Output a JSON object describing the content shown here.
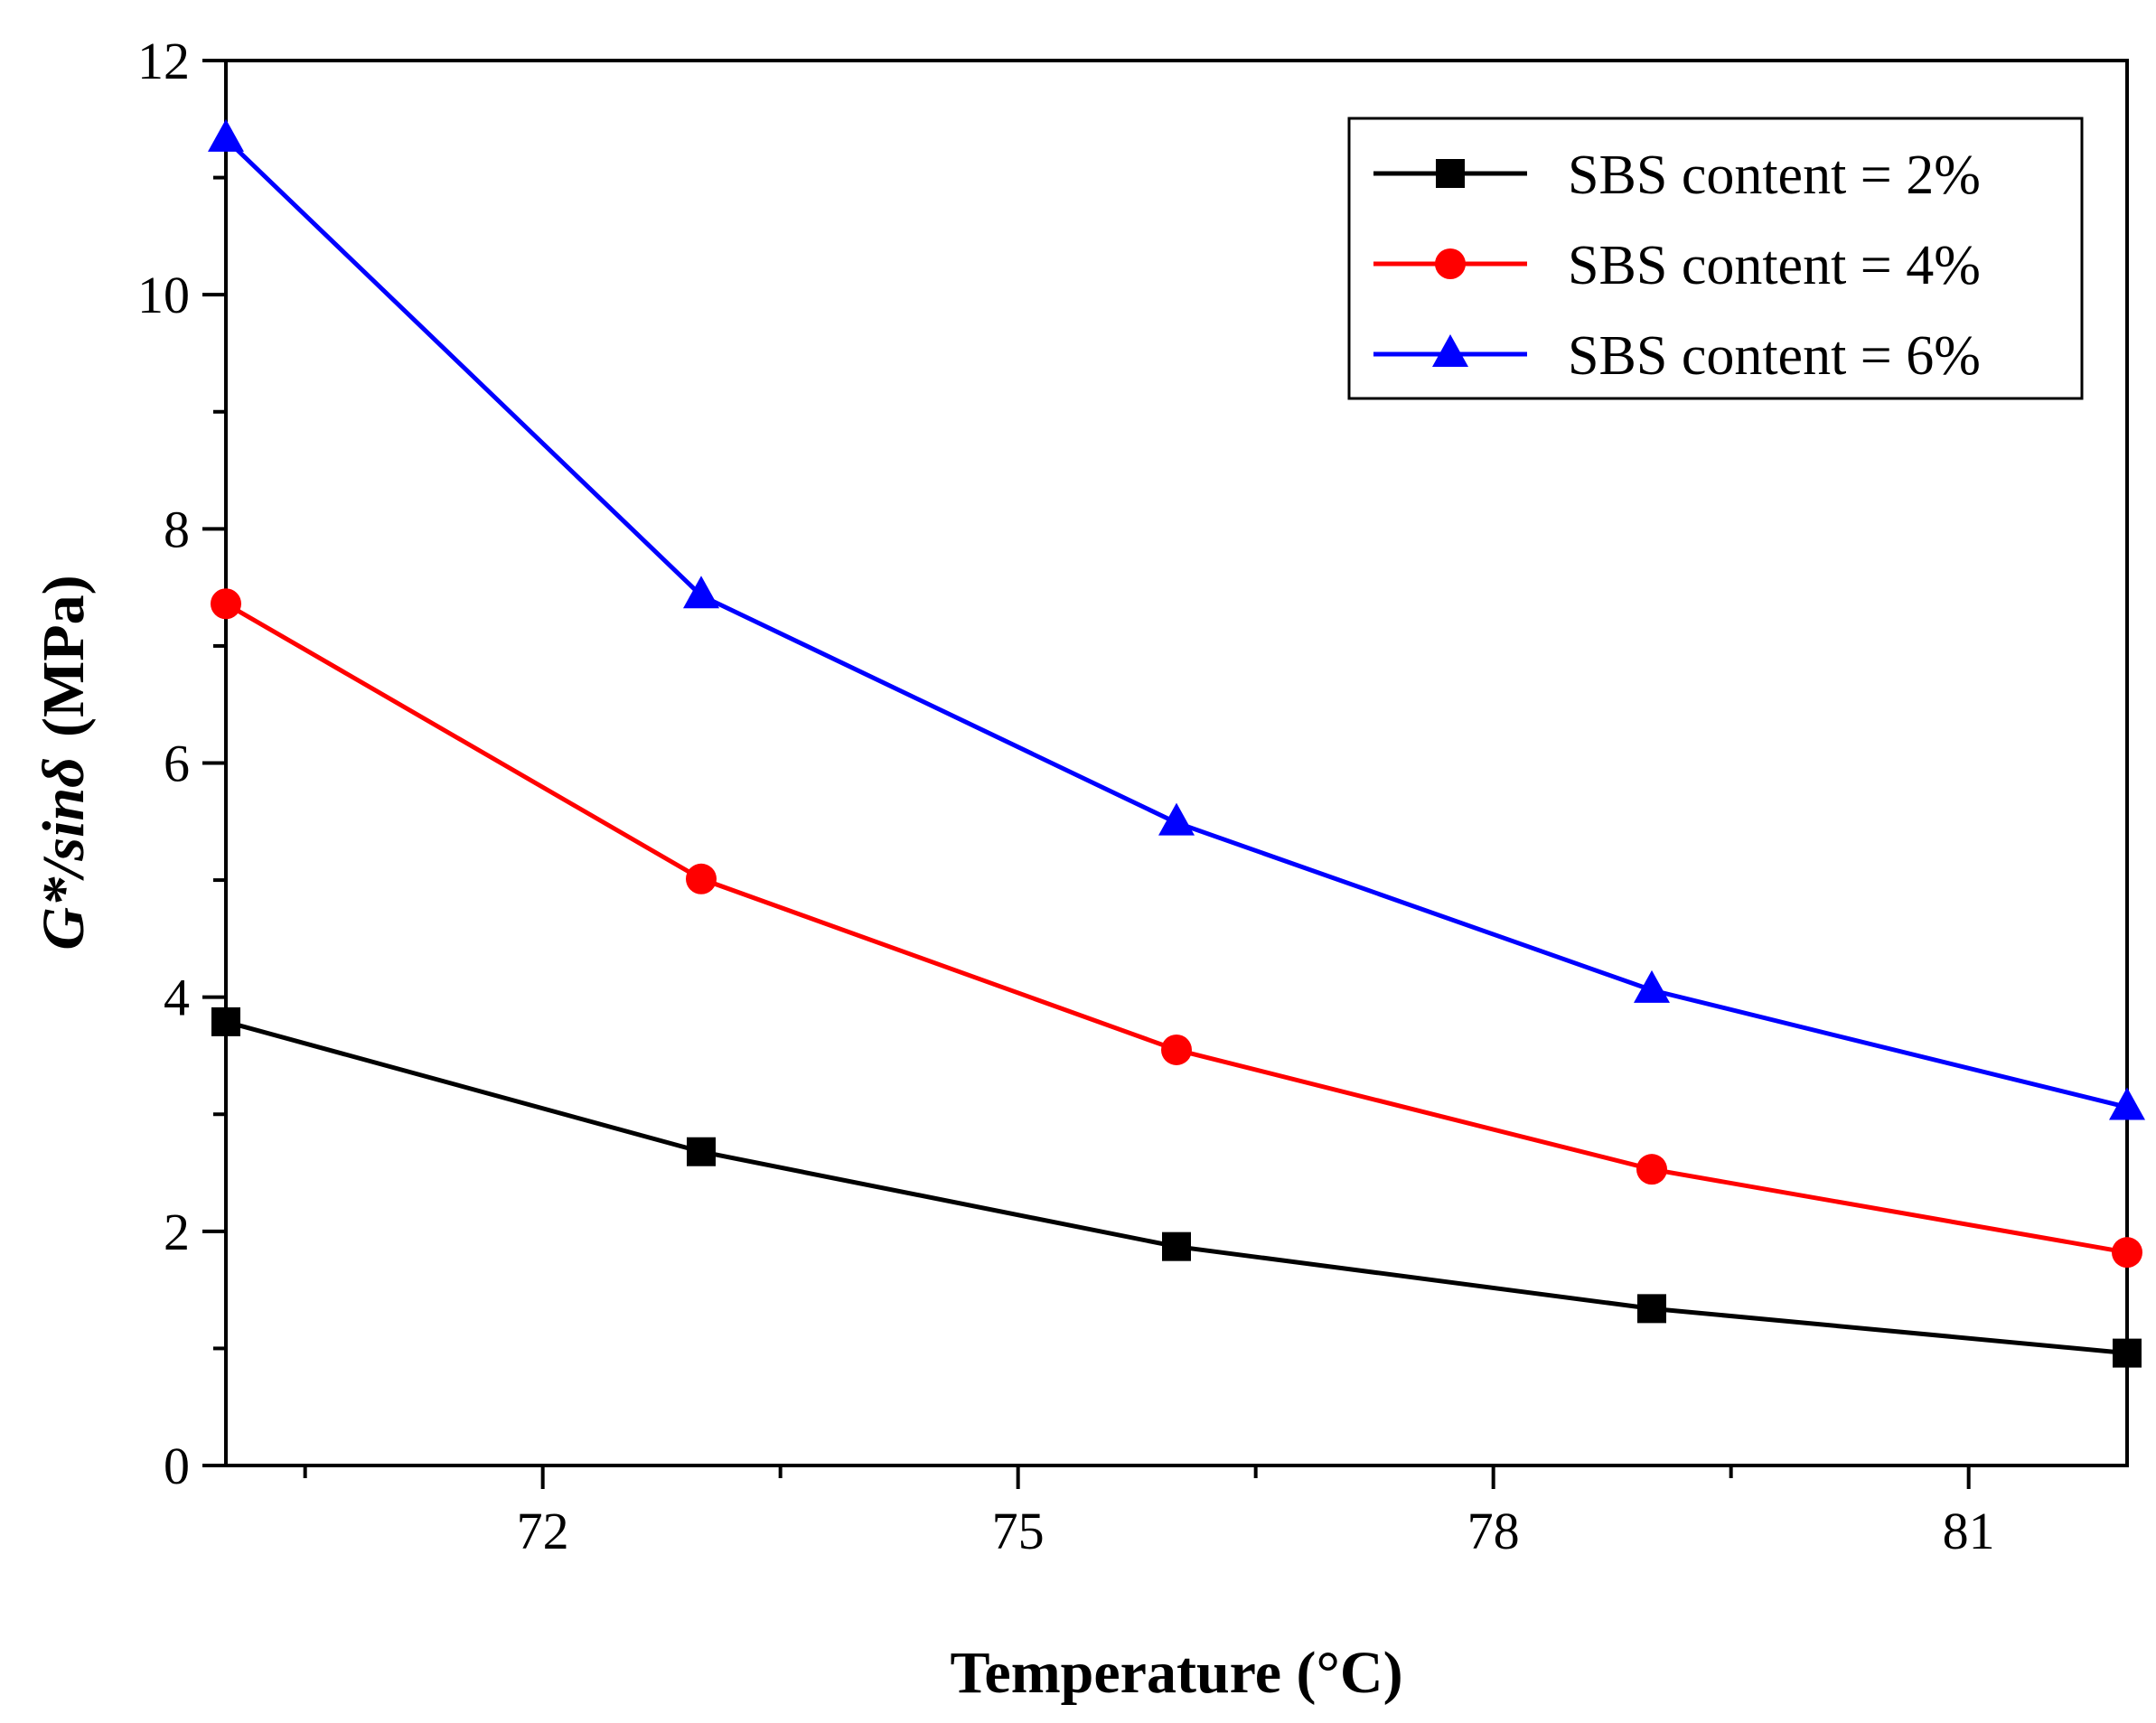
{
  "chart_data": {
    "type": "line",
    "title": "",
    "xlabel": "Temperature (°C)",
    "ylabel_main": "G*/sin",
    "ylabel_symbol": "δ",
    "ylabel_unit": "(MPa)",
    "xlim": [
      70,
      82
    ],
    "ylim": [
      0,
      12
    ],
    "xticks": [
      {
        "value": 72,
        "label": "72"
      },
      {
        "value": 75,
        "label": "75"
      },
      {
        "value": 78,
        "label": "78"
      },
      {
        "value": 81,
        "label": "81"
      }
    ],
    "xminor": [
      70.5,
      73.5,
      76.5,
      79.5
    ],
    "yticks": [
      {
        "value": 0,
        "label": "0"
      },
      {
        "value": 2,
        "label": "2"
      },
      {
        "value": 4,
        "label": "4"
      },
      {
        "value": 6,
        "label": "6"
      },
      {
        "value": 8,
        "label": "8"
      },
      {
        "value": 10,
        "label": "10"
      },
      {
        "value": 12,
        "label": "12"
      }
    ],
    "yminor": [
      1,
      3,
      5,
      7,
      9,
      11
    ],
    "grid": false,
    "legend_position": "top-right",
    "x": [
      70,
      73,
      76,
      79,
      82
    ],
    "series": [
      {
        "name": "SBS content = 2%",
        "color": "#000000",
        "marker": "square",
        "values": [
          3.79,
          2.68,
          1.87,
          1.34,
          0.96
        ]
      },
      {
        "name": "SBS content = 4%",
        "color": "#ff0000",
        "marker": "circle",
        "values": [
          7.36,
          5.01,
          3.55,
          2.53,
          1.82
        ]
      },
      {
        "name": "SBS content = 6%",
        "color": "#0000ff",
        "marker": "triangle",
        "values": [
          11.33,
          7.43,
          5.49,
          4.06,
          3.06
        ]
      }
    ]
  }
}
